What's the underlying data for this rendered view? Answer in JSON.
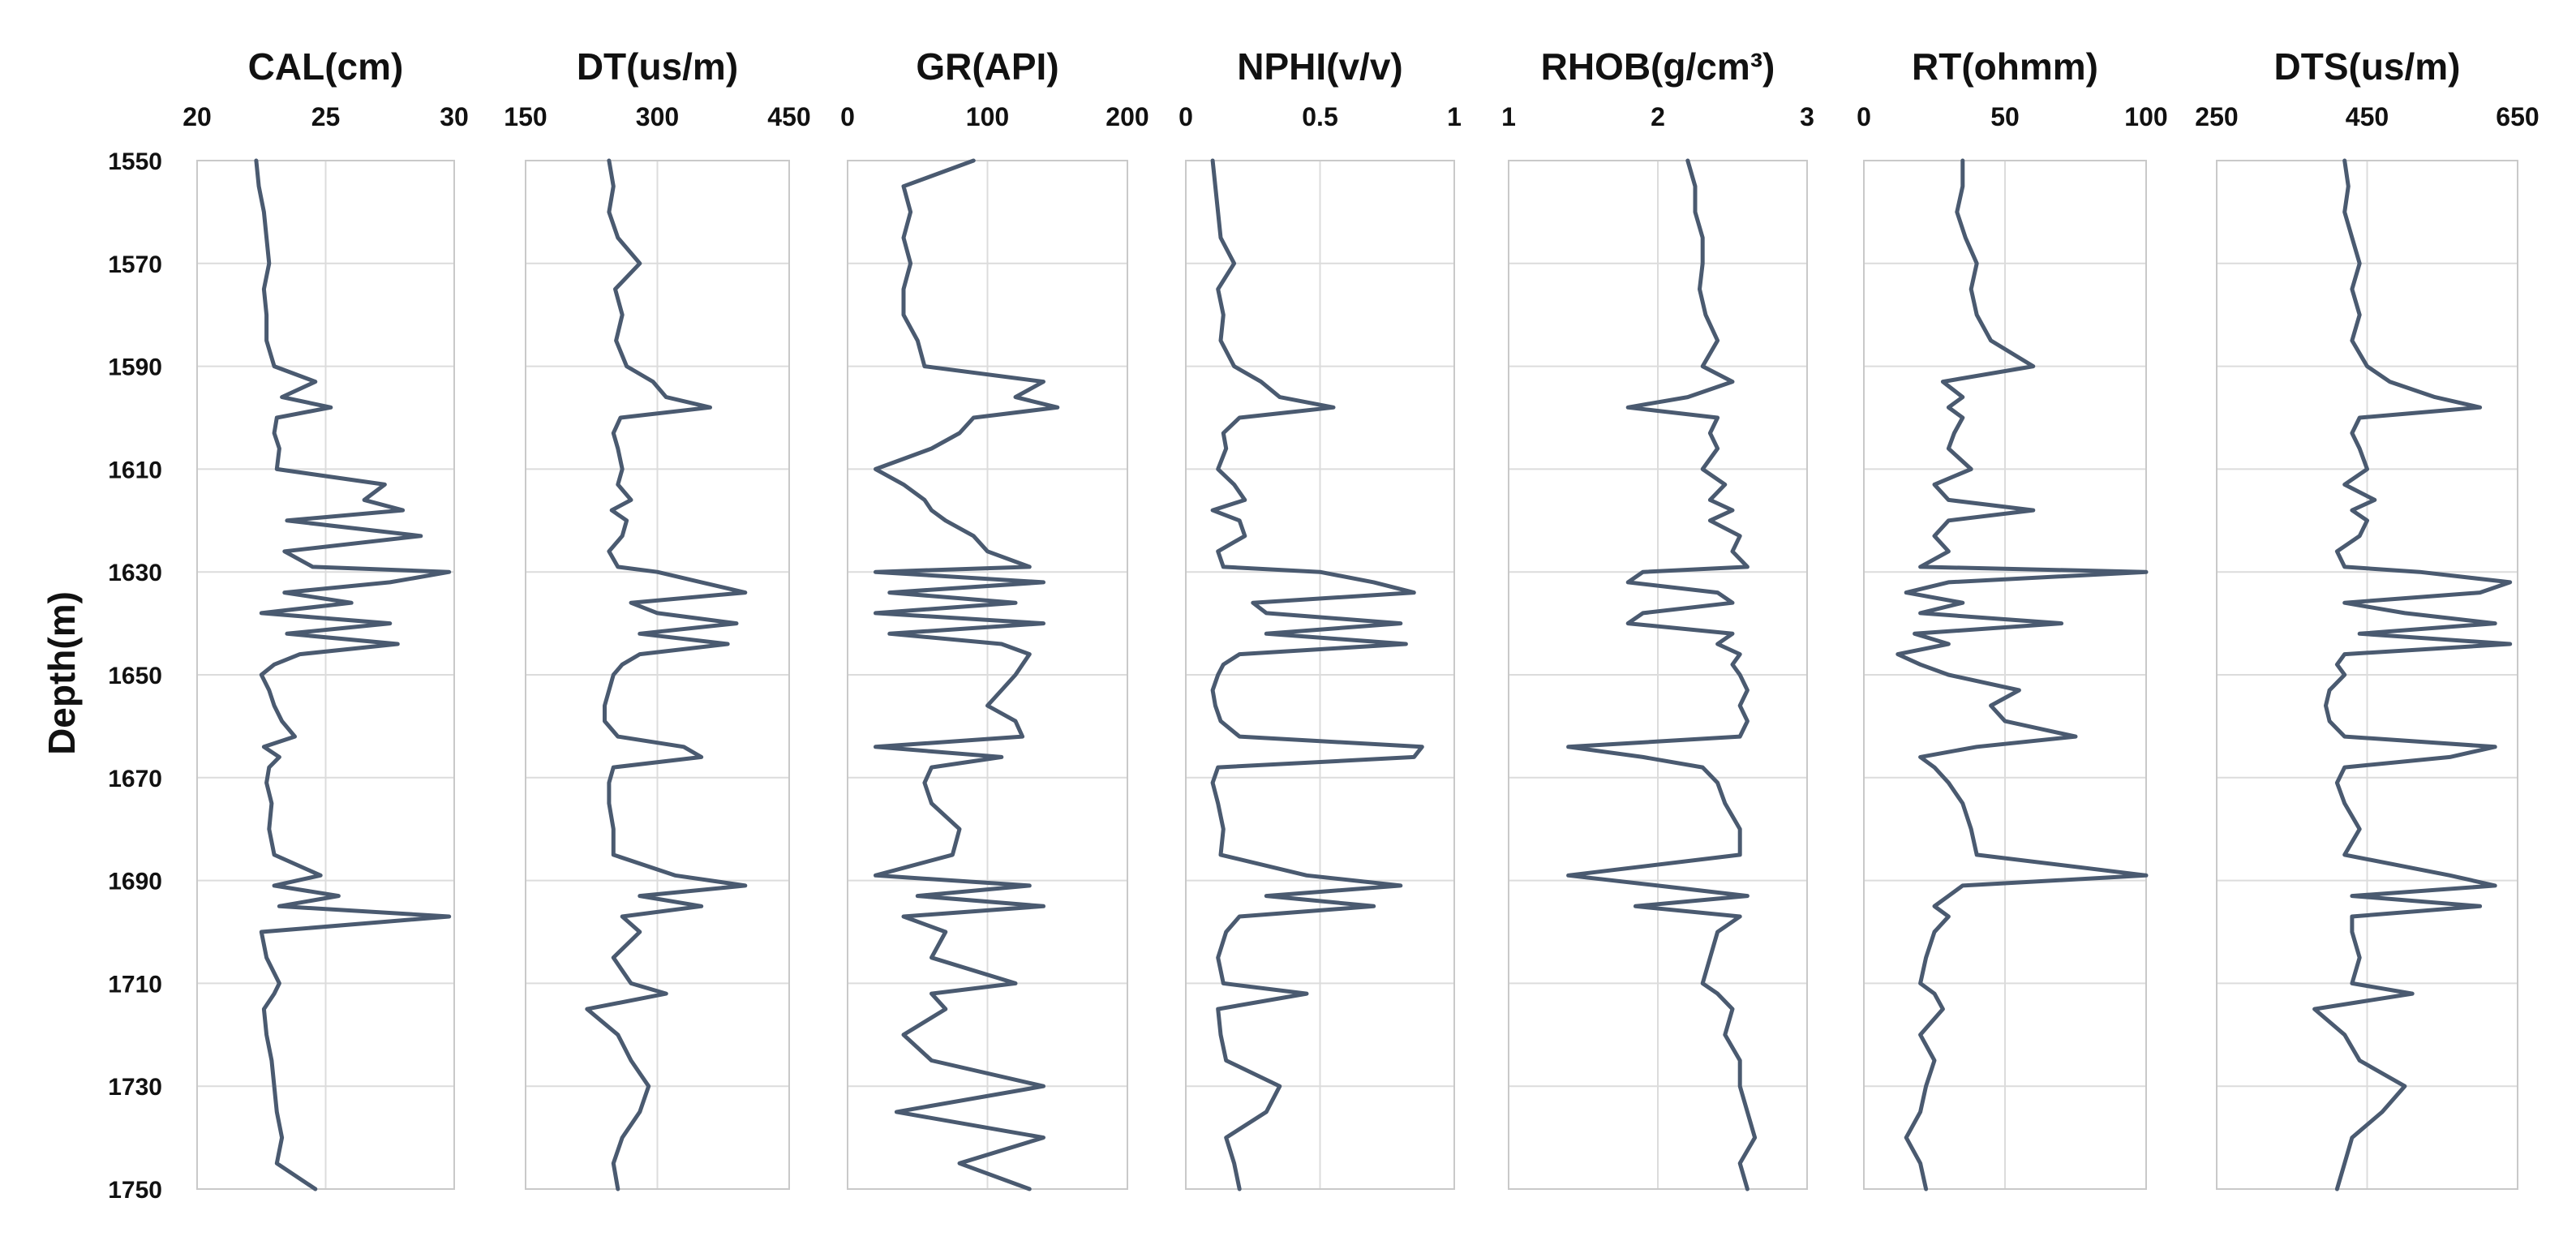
{
  "chart_data": {
    "type": "line",
    "orientation": "vertical-depth",
    "ylabel": "Depth(m)",
    "ylim": [
      1550,
      1750
    ],
    "yticks": [
      "1550",
      "1570",
      "1590",
      "1610",
      "1630",
      "1650",
      "1670",
      "1690",
      "1710",
      "1730",
      "1750"
    ],
    "line_color": "#4a5a70",
    "depth": [
      1550,
      1555,
      1560,
      1565,
      1570,
      1575,
      1580,
      1585,
      1590,
      1593,
      1596,
      1598,
      1600,
      1603,
      1606,
      1610,
      1613,
      1616,
      1618,
      1620,
      1623,
      1626,
      1629,
      1630,
      1632,
      1634,
      1636,
      1638,
      1640,
      1642,
      1644,
      1646,
      1648,
      1650,
      1653,
      1656,
      1659,
      1662,
      1664,
      1666,
      1668,
      1671,
      1675,
      1680,
      1685,
      1689,
      1691,
      1693,
      1695,
      1697,
      1700,
      1705,
      1710,
      1712,
      1715,
      1720,
      1725,
      1730,
      1735,
      1740,
      1745,
      1750
    ],
    "tracks": [
      {
        "title": "CAL(cm)",
        "xticks": [
          "20",
          "25",
          "30"
        ],
        "xlim": [
          20,
          30
        ],
        "values": [
          22.3,
          22.4,
          22.6,
          22.7,
          22.8,
          22.6,
          22.7,
          22.7,
          23.0,
          24.6,
          23.3,
          25.2,
          23.1,
          23.0,
          23.2,
          23.1,
          27.3,
          26.5,
          28.0,
          23.5,
          28.7,
          23.4,
          24.5,
          29.8,
          27.5,
          23.4,
          26.0,
          22.5,
          27.5,
          23.5,
          27.8,
          24.0,
          23.0,
          22.5,
          22.8,
          23.0,
          23.3,
          23.8,
          22.6,
          23.2,
          22.8,
          22.7,
          22.9,
          22.8,
          23.0,
          24.8,
          23.0,
          25.5,
          23.2,
          29.8,
          22.5,
          22.7,
          23.2,
          23.0,
          22.6,
          22.7,
          22.9,
          23.0,
          23.1,
          23.3,
          23.1,
          24.6
        ]
      },
      {
        "title": "DT(us/m)",
        "xticks": [
          "150",
          "300",
          "450"
        ],
        "xlim": [
          150,
          450
        ],
        "values": [
          245,
          250,
          245,
          255,
          280,
          252,
          260,
          253,
          265,
          295,
          310,
          360,
          258,
          250,
          255,
          260,
          255,
          270,
          248,
          265,
          260,
          245,
          255,
          300,
          350,
          400,
          270,
          300,
          390,
          280,
          380,
          280,
          260,
          250,
          245,
          240,
          240,
          255,
          330,
          350,
          250,
          245,
          245,
          250,
          250,
          320,
          400,
          280,
          350,
          260,
          280,
          250,
          270,
          310,
          220,
          255,
          270,
          290,
          280,
          260,
          250,
          255
        ]
      },
      {
        "title": "GR(API)",
        "xticks": [
          "0",
          "100",
          "200"
        ],
        "xlim": [
          0,
          200
        ],
        "values": [
          90,
          40,
          45,
          40,
          45,
          40,
          40,
          50,
          55,
          140,
          120,
          150,
          90,
          80,
          60,
          20,
          40,
          55,
          60,
          70,
          90,
          100,
          130,
          20,
          140,
          30,
          120,
          20,
          140,
          30,
          110,
          130,
          125,
          120,
          110,
          100,
          120,
          125,
          20,
          110,
          60,
          55,
          60,
          80,
          75,
          20,
          130,
          50,
          140,
          40,
          70,
          60,
          120,
          60,
          70,
          40,
          60,
          140,
          35,
          140,
          80,
          130
        ]
      },
      {
        "title": "NPHI(v/v)",
        "xticks": [
          "0",
          "0.5",
          "1"
        ],
        "xlim": [
          0,
          1
        ],
        "values": [
          0.1,
          0.11,
          0.12,
          0.13,
          0.18,
          0.12,
          0.14,
          0.13,
          0.18,
          0.28,
          0.35,
          0.55,
          0.2,
          0.14,
          0.15,
          0.12,
          0.18,
          0.22,
          0.1,
          0.2,
          0.22,
          0.12,
          0.14,
          0.5,
          0.7,
          0.85,
          0.25,
          0.3,
          0.8,
          0.3,
          0.82,
          0.2,
          0.14,
          0.12,
          0.1,
          0.11,
          0.13,
          0.2,
          0.88,
          0.85,
          0.12,
          0.1,
          0.12,
          0.14,
          0.13,
          0.45,
          0.8,
          0.3,
          0.7,
          0.2,
          0.15,
          0.12,
          0.14,
          0.45,
          0.12,
          0.13,
          0.15,
          0.35,
          0.3,
          0.15,
          0.18,
          0.2
        ]
      },
      {
        "title": "RHOB(g/cm³)",
        "xticks": [
          "1",
          "2",
          "3"
        ],
        "xlim": [
          1,
          3
        ],
        "values": [
          2.2,
          2.25,
          2.25,
          2.3,
          2.3,
          2.28,
          2.32,
          2.4,
          2.3,
          2.5,
          2.2,
          1.8,
          2.4,
          2.35,
          2.4,
          2.3,
          2.45,
          2.35,
          2.5,
          2.35,
          2.55,
          2.5,
          2.6,
          1.9,
          1.8,
          2.4,
          2.5,
          1.9,
          1.8,
          2.5,
          2.4,
          2.55,
          2.5,
          2.55,
          2.6,
          2.55,
          2.6,
          2.55,
          1.4,
          1.9,
          2.3,
          2.4,
          2.45,
          2.55,
          2.55,
          1.4,
          2.0,
          2.6,
          1.85,
          2.55,
          2.4,
          2.35,
          2.3,
          2.4,
          2.5,
          2.45,
          2.55,
          2.55,
          2.6,
          2.65,
          2.55,
          2.6
        ]
      },
      {
        "title": "RT(ohmm)",
        "xticks": [
          "0",
          "50",
          "100"
        ],
        "xlim": [
          0,
          100
        ],
        "values": [
          35,
          35,
          33,
          36,
          40,
          38,
          40,
          45,
          60,
          28,
          35,
          30,
          35,
          32,
          30,
          38,
          25,
          30,
          60,
          30,
          25,
          30,
          20,
          100,
          30,
          15,
          35,
          20,
          70,
          18,
          30,
          12,
          20,
          30,
          55,
          45,
          50,
          75,
          40,
          20,
          25,
          30,
          35,
          38,
          40,
          100,
          35,
          30,
          25,
          30,
          25,
          22,
          20,
          25,
          28,
          20,
          25,
          22,
          20,
          15,
          20,
          22
        ]
      },
      {
        "title": "DTS(us/m)",
        "xticks": [
          "250",
          "450",
          "650"
        ],
        "xlim": [
          250,
          650
        ],
        "values": [
          420,
          425,
          420,
          430,
          440,
          430,
          440,
          430,
          450,
          480,
          540,
          600,
          440,
          430,
          440,
          450,
          420,
          460,
          430,
          450,
          440,
          410,
          420,
          520,
          640,
          600,
          420,
          500,
          620,
          440,
          640,
          420,
          410,
          420,
          400,
          395,
          400,
          420,
          620,
          560,
          420,
          410,
          420,
          440,
          420,
          560,
          620,
          430,
          600,
          430,
          430,
          440,
          430,
          510,
          380,
          420,
          440,
          500,
          470,
          430,
          420,
          410
        ]
      }
    ]
  }
}
